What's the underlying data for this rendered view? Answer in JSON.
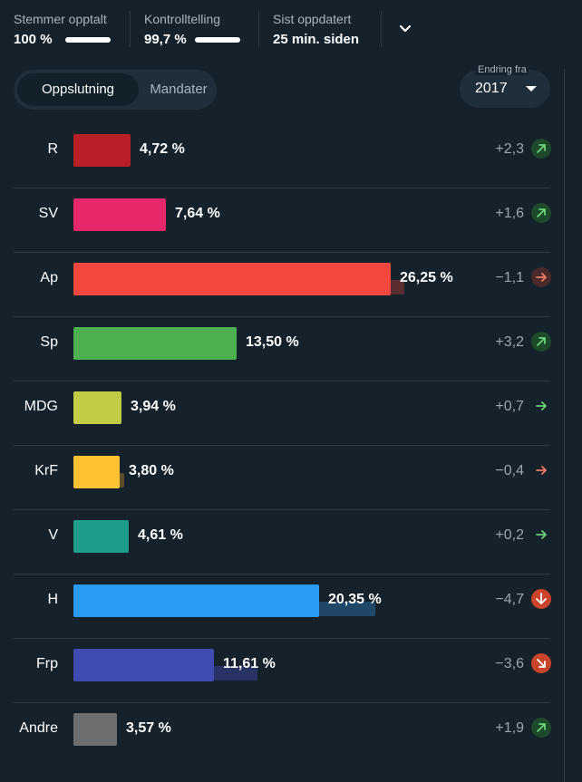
{
  "stats": [
    {
      "label": "Stemmer opptalt",
      "value": "100 %",
      "progress": 1.0
    },
    {
      "label": "Kontrolltelling",
      "value": "99,7 %",
      "progress": 0.997
    },
    {
      "label": "Sist oppdatert",
      "value": "25 min. siden"
    }
  ],
  "toggle": {
    "active": "Oppslutning",
    "inactive": "Mandater"
  },
  "compare": {
    "label": "Endring fra",
    "value": "2017"
  },
  "chart_data": {
    "type": "bar",
    "categories": [
      "R",
      "SV",
      "Ap",
      "Sp",
      "MDG",
      "KrF",
      "V",
      "H",
      "Frp",
      "Andre"
    ],
    "series": [
      {
        "values": [
          4.72,
          7.64,
          26.25,
          13.5,
          3.94,
          3.8,
          4.61,
          20.35,
          11.61,
          3.57
        ]
      },
      {
        "values": [
          2.4,
          6.0,
          27.4,
          10.3,
          3.2,
          4.2,
          4.4,
          25.0,
          15.2,
          1.7
        ]
      }
    ],
    "value_labels": [
      "4,72 %",
      "7,64 %",
      "26,25 %",
      "13,50 %",
      "3,94 %",
      "3,80 %",
      "4,61 %",
      "20,35 %",
      "11,61 %",
      "3,57 %"
    ],
    "change_labels": [
      "+2,3",
      "+1,6",
      "−1,1",
      "+3,2",
      "+0,7",
      "−0,4",
      "+0,2",
      "−4,7",
      "−3,6",
      "+1,9"
    ],
    "change_values": [
      2.3,
      1.6,
      -1.1,
      3.2,
      0.7,
      -0.4,
      0.2,
      -4.7,
      -3.6,
      1.9
    ],
    "colors": [
      "#b92025",
      "#e8266a",
      "#f4483f",
      "#4caf50",
      "#c3cc47",
      "#fec132",
      "#1e9d8a",
      "#2b9af3",
      "#3f4db2",
      "#6e6e6e"
    ],
    "prev_colors": [
      "#51262b",
      "#522838",
      "#5c2d2e",
      "#284a33",
      "#484c2d",
      "#5e4d2a",
      "#1c4a47",
      "#1f4767",
      "#283264",
      "#303538"
    ],
    "xlim": [
      0,
      30
    ]
  }
}
